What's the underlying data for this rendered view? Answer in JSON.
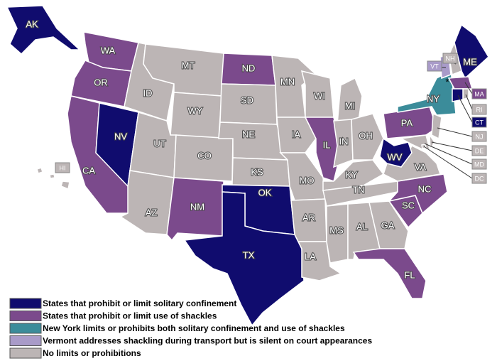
{
  "legend": [
    {
      "label": "States that prohibit or limit solitary confinement",
      "color": "#100c6e"
    },
    {
      "label": "States that prohibit or limit use of shackles",
      "color": "#7b4a8c"
    },
    {
      "label": "New York limits or prohibits both solitary confinement and use of shackles",
      "color": "#3b8c9a"
    },
    {
      "label": "Vermont addresses shackling during transport but is silent on court appearances",
      "color": "#a99bc9"
    },
    {
      "label": "No limits or prohibitions",
      "color": "#bcb5b5"
    }
  ],
  "note_marker": "*",
  "states": [
    {
      "abbr": "AK",
      "category": 0
    },
    {
      "abbr": "WA",
      "category": 1
    },
    {
      "abbr": "OR",
      "category": 1
    },
    {
      "abbr": "CA",
      "category": 1
    },
    {
      "abbr": "NV",
      "category": 0
    },
    {
      "abbr": "ID",
      "category": 4
    },
    {
      "abbr": "MT",
      "category": 4
    },
    {
      "abbr": "WY",
      "category": 4
    },
    {
      "abbr": "UT",
      "category": 4
    },
    {
      "abbr": "CO",
      "category": 4
    },
    {
      "abbr": "AZ",
      "category": 4
    },
    {
      "abbr": "NM",
      "category": 1
    },
    {
      "abbr": "ND",
      "category": 1
    },
    {
      "abbr": "SD",
      "category": 4
    },
    {
      "abbr": "NE",
      "category": 4
    },
    {
      "abbr": "KS",
      "category": 4
    },
    {
      "abbr": "OK",
      "category": 0
    },
    {
      "abbr": "TX",
      "category": 0
    },
    {
      "abbr": "MN",
      "category": 4
    },
    {
      "abbr": "IA",
      "category": 4
    },
    {
      "abbr": "MO",
      "category": 4
    },
    {
      "abbr": "AR",
      "category": 4
    },
    {
      "abbr": "LA",
      "category": 4
    },
    {
      "abbr": "WI",
      "category": 4
    },
    {
      "abbr": "IL",
      "category": 1
    },
    {
      "abbr": "MI",
      "category": 4
    },
    {
      "abbr": "IN",
      "category": 4
    },
    {
      "abbr": "OH",
      "category": 4
    },
    {
      "abbr": "KY",
      "category": 4
    },
    {
      "abbr": "TN",
      "category": 4
    },
    {
      "abbr": "MS",
      "category": 4
    },
    {
      "abbr": "AL",
      "category": 4
    },
    {
      "abbr": "GA",
      "category": 4
    },
    {
      "abbr": "FL",
      "category": 1
    },
    {
      "abbr": "SC",
      "category": 1
    },
    {
      "abbr": "NC",
      "category": 1
    },
    {
      "abbr": "VA",
      "category": 4
    },
    {
      "abbr": "WV",
      "category": 0
    },
    {
      "abbr": "PA",
      "category": 1
    },
    {
      "abbr": "NY",
      "category": 2
    },
    {
      "abbr": "ME",
      "category": 0
    },
    {
      "abbr": "VT",
      "category": 3
    },
    {
      "abbr": "NH",
      "category": 4
    },
    {
      "abbr": "MA",
      "category": 1
    },
    {
      "abbr": "RI",
      "category": 4
    },
    {
      "abbr": "CT",
      "category": 0
    },
    {
      "abbr": "NJ",
      "category": 4
    },
    {
      "abbr": "DE",
      "category": 4
    },
    {
      "abbr": "MD",
      "category": 4
    },
    {
      "abbr": "DC",
      "category": 4
    },
    {
      "abbr": "HI",
      "category": 4
    }
  ]
}
